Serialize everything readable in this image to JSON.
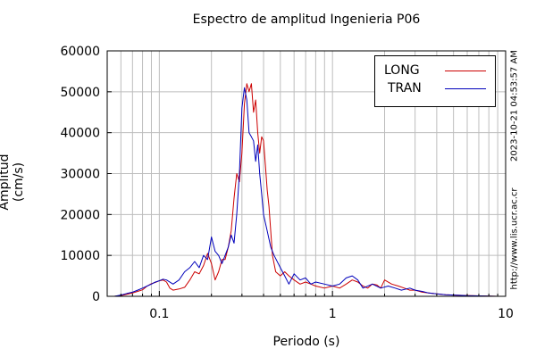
{
  "chart_data": {
    "type": "line",
    "title": "Espectro de amplitud Ingenieria P06",
    "xlabel": "Periodo (s)",
    "ylabel": "Amplitud (cm/s)",
    "x_scale": "log",
    "xlim": [
      0.05,
      10
    ],
    "ylim": [
      0,
      60000
    ],
    "x_ticks": [
      {
        "value": 0.1,
        "label": "0.1"
      },
      {
        "value": 1,
        "label": "1"
      },
      {
        "value": 10,
        "label": "10"
      }
    ],
    "y_ticks": [
      {
        "value": 0,
        "label": "0"
      },
      {
        "value": 10000,
        "label": "10000"
      },
      {
        "value": 20000,
        "label": "20000"
      },
      {
        "value": 30000,
        "label": "30000"
      },
      {
        "value": 40000,
        "label": "40000"
      },
      {
        "value": 50000,
        "label": "50000"
      },
      {
        "value": 60000,
        "label": "60000"
      }
    ],
    "grid": true,
    "legend_position": "top-right",
    "series": [
      {
        "name": "LONG",
        "color": "#cc0000",
        "x": [
          0.055,
          0.06,
          0.065,
          0.07,
          0.075,
          0.08,
          0.085,
          0.09,
          0.095,
          0.1,
          0.105,
          0.11,
          0.115,
          0.12,
          0.13,
          0.14,
          0.15,
          0.16,
          0.17,
          0.18,
          0.19,
          0.2,
          0.21,
          0.22,
          0.23,
          0.24,
          0.25,
          0.26,
          0.27,
          0.28,
          0.29,
          0.3,
          0.31,
          0.32,
          0.33,
          0.34,
          0.35,
          0.36,
          0.37,
          0.38,
          0.39,
          0.4,
          0.41,
          0.42,
          0.43,
          0.45,
          0.47,
          0.5,
          0.53,
          0.56,
          0.6,
          0.65,
          0.7,
          0.75,
          0.8,
          0.9,
          1.0,
          1.1,
          1.2,
          1.3,
          1.4,
          1.5,
          1.6,
          1.7,
          1.8,
          1.9,
          2.0,
          2.2,
          2.4,
          2.6,
          2.8,
          3.0,
          3.3,
          3.6,
          4.0,
          4.5,
          5.0,
          6.0,
          7.0,
          8.0,
          9.0,
          10.0
        ],
        "y": [
          0,
          200,
          500,
          800,
          1200,
          1600,
          2500,
          3100,
          3400,
          3800,
          4000,
          3500,
          2000,
          1500,
          1800,
          2200,
          4000,
          6000,
          5500,
          7500,
          10500,
          8000,
          4000,
          6000,
          9000,
          9000,
          12000,
          16000,
          24000,
          30000,
          28000,
          35000,
          47000,
          52000,
          50000,
          52000,
          45000,
          48000,
          40000,
          35000,
          39000,
          38000,
          32000,
          26000,
          22000,
          10000,
          6000,
          5000,
          6000,
          5000,
          4000,
          3000,
          3500,
          3000,
          2500,
          2000,
          2500,
          2000,
          3000,
          4000,
          3500,
          2500,
          2000,
          3000,
          2800,
          2000,
          4000,
          3000,
          2500,
          2000,
          1500,
          1500,
          1000,
          800,
          600,
          400,
          300,
          200,
          100,
          50,
          0,
          0
        ]
      },
      {
        "name": "TRAN",
        "color": "#0000bb",
        "x": [
          0.055,
          0.06,
          0.065,
          0.07,
          0.075,
          0.08,
          0.085,
          0.09,
          0.095,
          0.1,
          0.105,
          0.11,
          0.12,
          0.13,
          0.14,
          0.15,
          0.16,
          0.17,
          0.18,
          0.19,
          0.2,
          0.21,
          0.22,
          0.23,
          0.24,
          0.25,
          0.26,
          0.27,
          0.28,
          0.29,
          0.3,
          0.31,
          0.32,
          0.33,
          0.34,
          0.35,
          0.36,
          0.37,
          0.38,
          0.39,
          0.4,
          0.42,
          0.44,
          0.46,
          0.5,
          0.53,
          0.56,
          0.6,
          0.65,
          0.7,
          0.75,
          0.8,
          0.9,
          1.0,
          1.1,
          1.2,
          1.3,
          1.4,
          1.5,
          1.7,
          1.9,
          2.1,
          2.3,
          2.5,
          2.8,
          3.0,
          3.3,
          3.6,
          4.0,
          4.5,
          5.0,
          6.0,
          7.0,
          8.0,
          9.0,
          10.0
        ],
        "y": [
          0,
          300,
          700,
          1000,
          1500,
          2000,
          2500,
          3000,
          3500,
          3800,
          4200,
          4000,
          3000,
          4000,
          6000,
          7000,
          8500,
          7000,
          10000,
          9000,
          14500,
          11000,
          10000,
          8000,
          10000,
          12000,
          15000,
          13000,
          20000,
          30000,
          46000,
          51000,
          48000,
          40000,
          39000,
          38000,
          33000,
          37000,
          30000,
          25000,
          20000,
          16000,
          12000,
          10000,
          7000,
          5000,
          3000,
          5500,
          4000,
          4500,
          3000,
          3500,
          3000,
          2500,
          3000,
          4500,
          5000,
          4000,
          2000,
          3000,
          2000,
          2500,
          2000,
          1500,
          2000,
          1500,
          1200,
          800,
          600,
          400,
          300,
          150,
          100,
          50,
          0,
          0
        ]
      }
    ],
    "side_text": {
      "date": "2023-10-21 04:53:57 AM",
      "url": "http://www.lis.ucr.ac.cr"
    }
  }
}
